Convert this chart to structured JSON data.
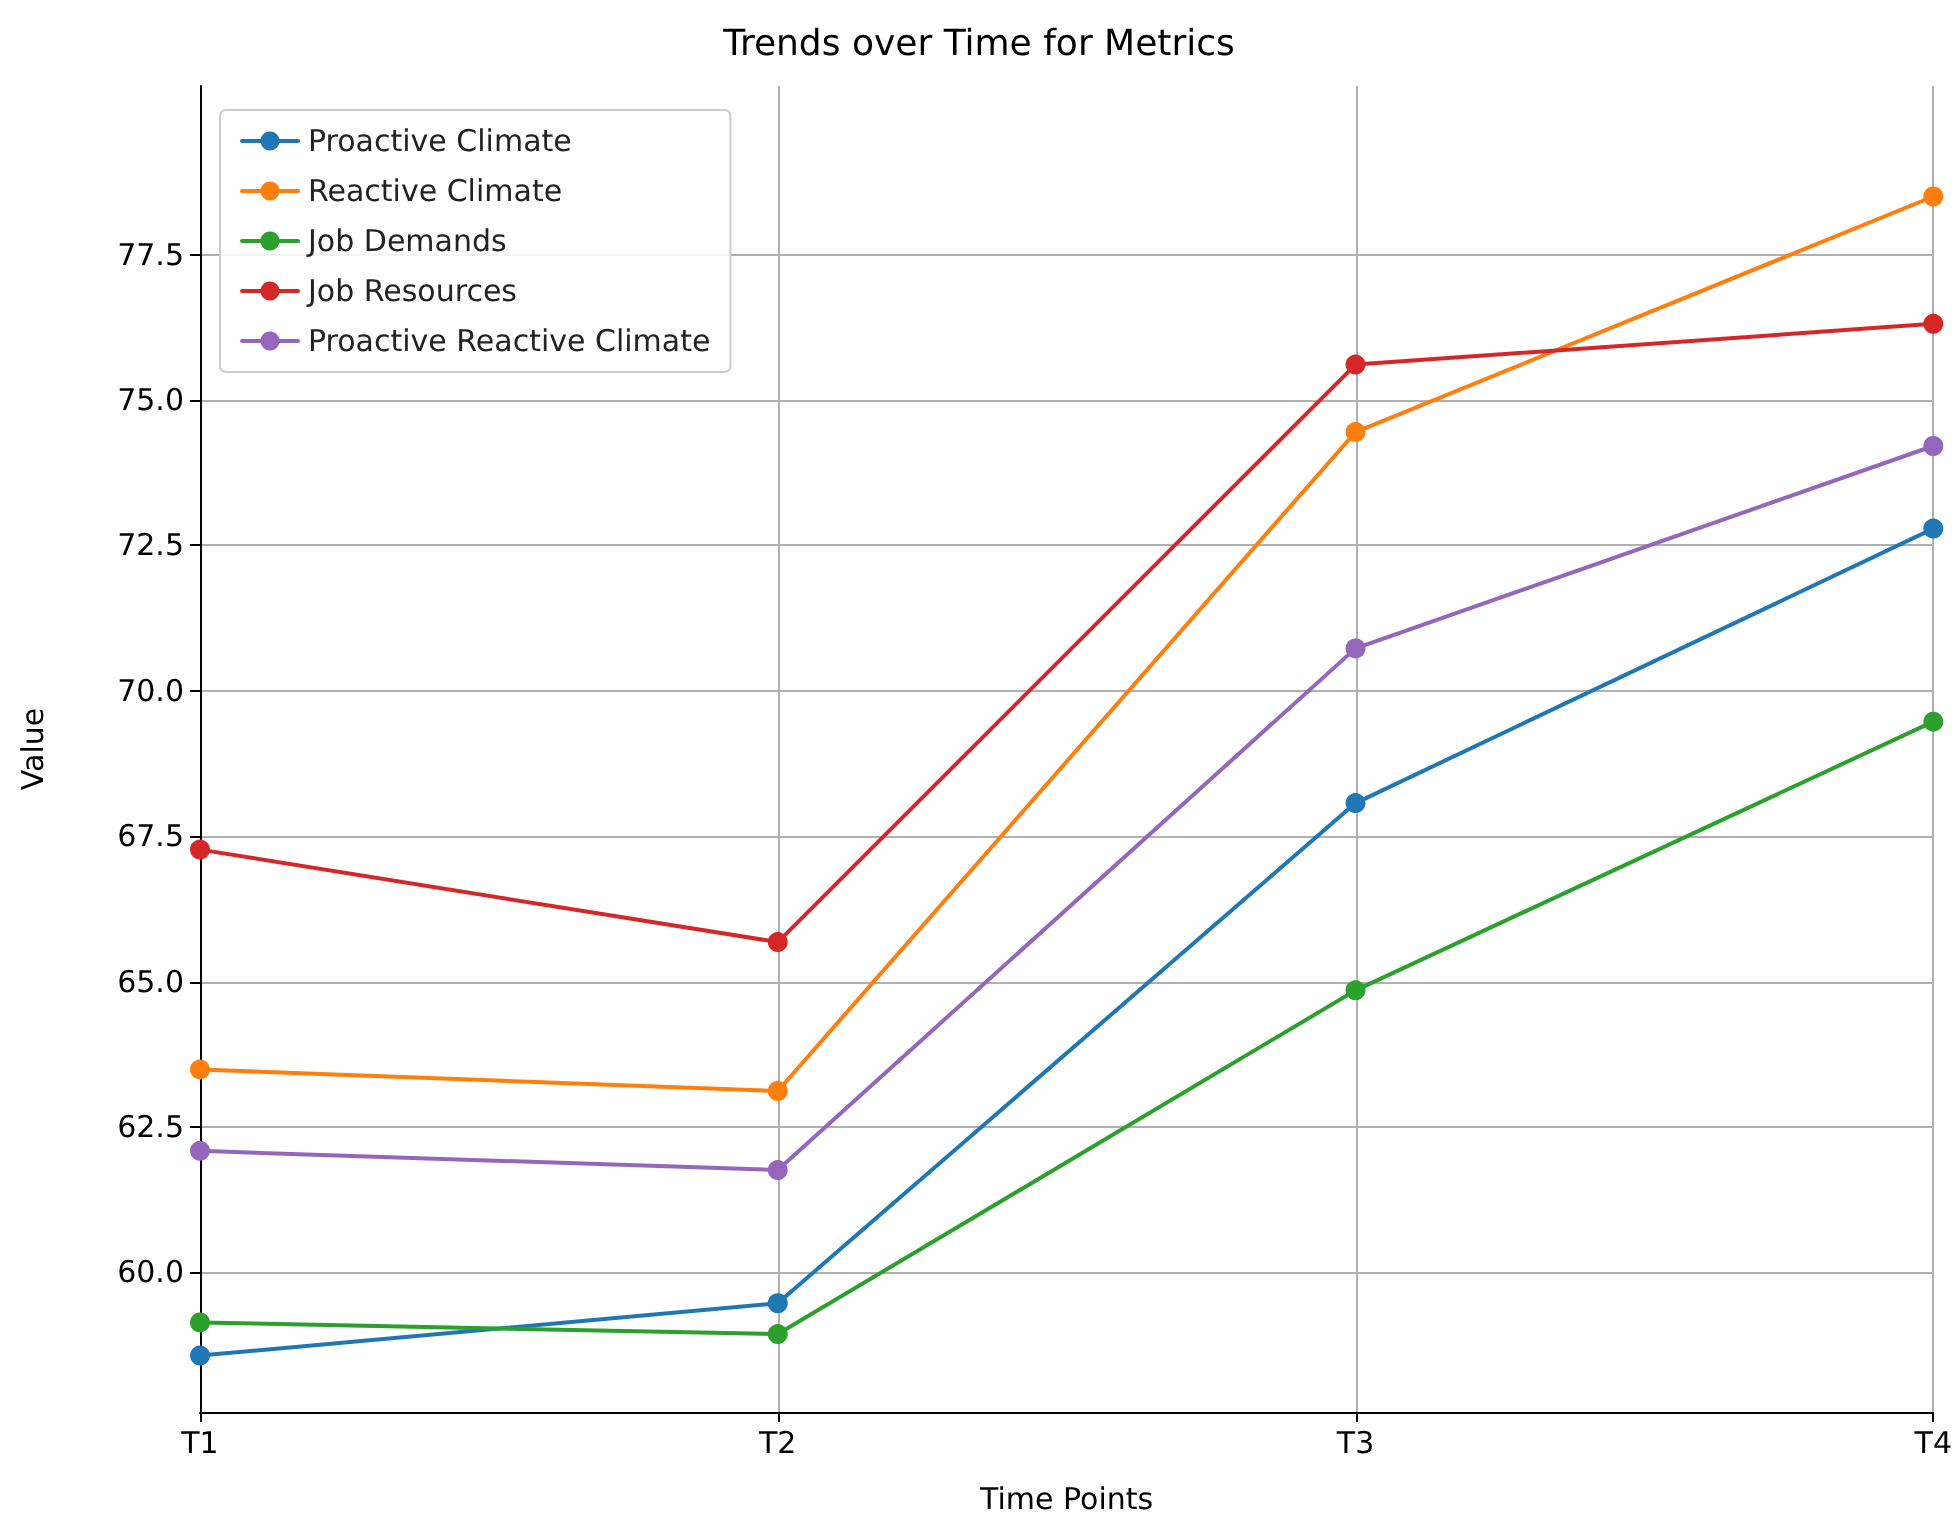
{
  "chart_data": {
    "type": "line",
    "title": "Trends over Time for Metrics",
    "xlabel": "Time Points",
    "ylabel": "Value",
    "categories": [
      "T1",
      "T2",
      "T3",
      "T4"
    ],
    "series": [
      {
        "name": "Proactive Climate",
        "color": "#1f77b4",
        "values": [
          58.57,
          59.47,
          68.07,
          72.79
        ]
      },
      {
        "name": "Reactive Climate",
        "color": "#ff7f0e",
        "values": [
          63.49,
          63.12,
          74.45,
          78.5
        ]
      },
      {
        "name": "Job Demands",
        "color": "#2ca02c",
        "values": [
          59.14,
          58.94,
          64.85,
          69.47
        ]
      },
      {
        "name": "Job Resources",
        "color": "#d62728",
        "values": [
          67.27,
          65.68,
          75.61,
          76.31
        ]
      },
      {
        "name": "Proactive Reactive Climate",
        "color": "#9467bd",
        "values": [
          62.09,
          61.76,
          70.73,
          74.21
        ]
      }
    ],
    "ylim": [
      57.6,
      80.4
    ],
    "yticks": [
      {
        "value": 60,
        "label": "60.0"
      },
      {
        "value": 62.5,
        "label": "62.5"
      },
      {
        "value": 65,
        "label": "65.0"
      },
      {
        "value": 67.5,
        "label": "67.5"
      },
      {
        "value": 70,
        "label": "70.0"
      },
      {
        "value": 72.5,
        "label": "72.5"
      },
      {
        "value": 75,
        "label": "75.0"
      },
      {
        "value": 77.5,
        "label": "77.5"
      }
    ],
    "grid": true,
    "legend": "top left",
    "marker": "circle",
    "line_style": "solid"
  }
}
